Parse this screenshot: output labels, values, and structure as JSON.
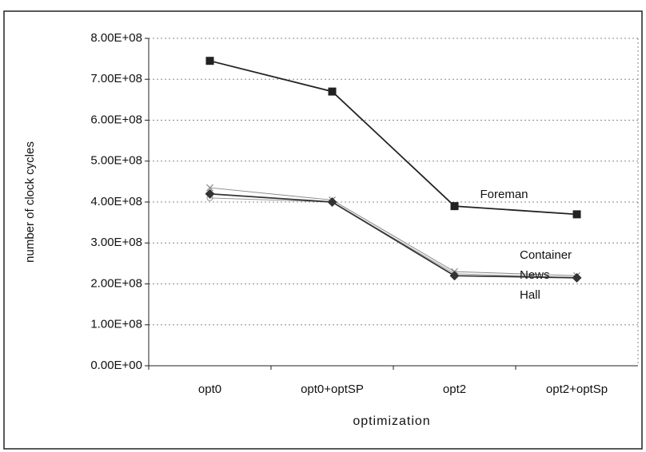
{
  "chart_data": {
    "type": "line",
    "x_label": "optimization",
    "y_label": "number of clock cycles",
    "categories": [
      "opt0",
      "opt0+optSP",
      "opt2",
      "opt2+optSp"
    ],
    "series": [
      {
        "name": "Foreman",
        "color": "#222222",
        "marker": "square",
        "values": [
          745000000,
          670000000,
          390000000,
          370000000
        ]
      },
      {
        "name": "Container",
        "color": "#888888",
        "marker": "x",
        "values": [
          435000000,
          405000000,
          230000000,
          220000000
        ]
      },
      {
        "name": "News",
        "color": "#999999",
        "marker": "circle",
        "values": [
          410000000,
          400000000,
          225000000,
          215000000
        ]
      },
      {
        "name": "Hall",
        "color": "#333333",
        "marker": "diamond",
        "values": [
          420000000,
          400000000,
          220000000,
          215000000
        ]
      }
    ],
    "ylim": [
      0,
      800000000
    ],
    "yticks": [
      {
        "value": 0,
        "label": "0.00E+00"
      },
      {
        "value": 100000000,
        "label": "1.00E+08"
      },
      {
        "value": 200000000,
        "label": "2.00E+08"
      },
      {
        "value": 300000000,
        "label": "3.00E+08"
      },
      {
        "value": 400000000,
        "label": "4.00E+08"
      },
      {
        "value": 500000000,
        "label": "5.00E+08"
      },
      {
        "value": 600000000,
        "label": "6.00E+08"
      },
      {
        "value": 700000000,
        "label": "7.00E+08"
      },
      {
        "value": 800000000,
        "label": "8.00E+08"
      }
    ],
    "grid": true
  }
}
